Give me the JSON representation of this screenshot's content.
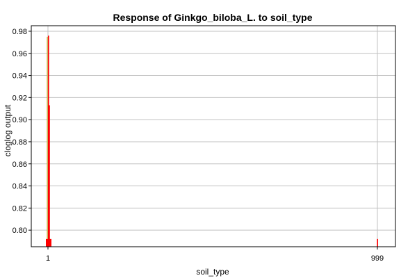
{
  "chart_data": {
    "type": "bar",
    "title": "Response of Ginkgo_biloba_L. to soil_type",
    "xlabel": "soil_type",
    "ylabel": "cloglog output",
    "categories": [
      "1",
      "999"
    ],
    "ylim": [
      0.785,
      0.985
    ],
    "yticks": [
      0.8,
      0.82,
      0.84,
      0.86,
      0.88,
      0.9,
      0.92,
      0.94,
      0.96,
      0.98
    ],
    "grid": true,
    "series": [
      {
        "color": "#ff0000",
        "values": [
          0.976,
          0.792
        ],
        "secondary_values": [
          0.913,
          null
        ],
        "base_values": [
          0.792,
          null
        ]
      },
      {
        "color": "#c8a000",
        "values": [
          0.975,
          null
        ]
      }
    ],
    "category_color": "#c0c0c0"
  }
}
